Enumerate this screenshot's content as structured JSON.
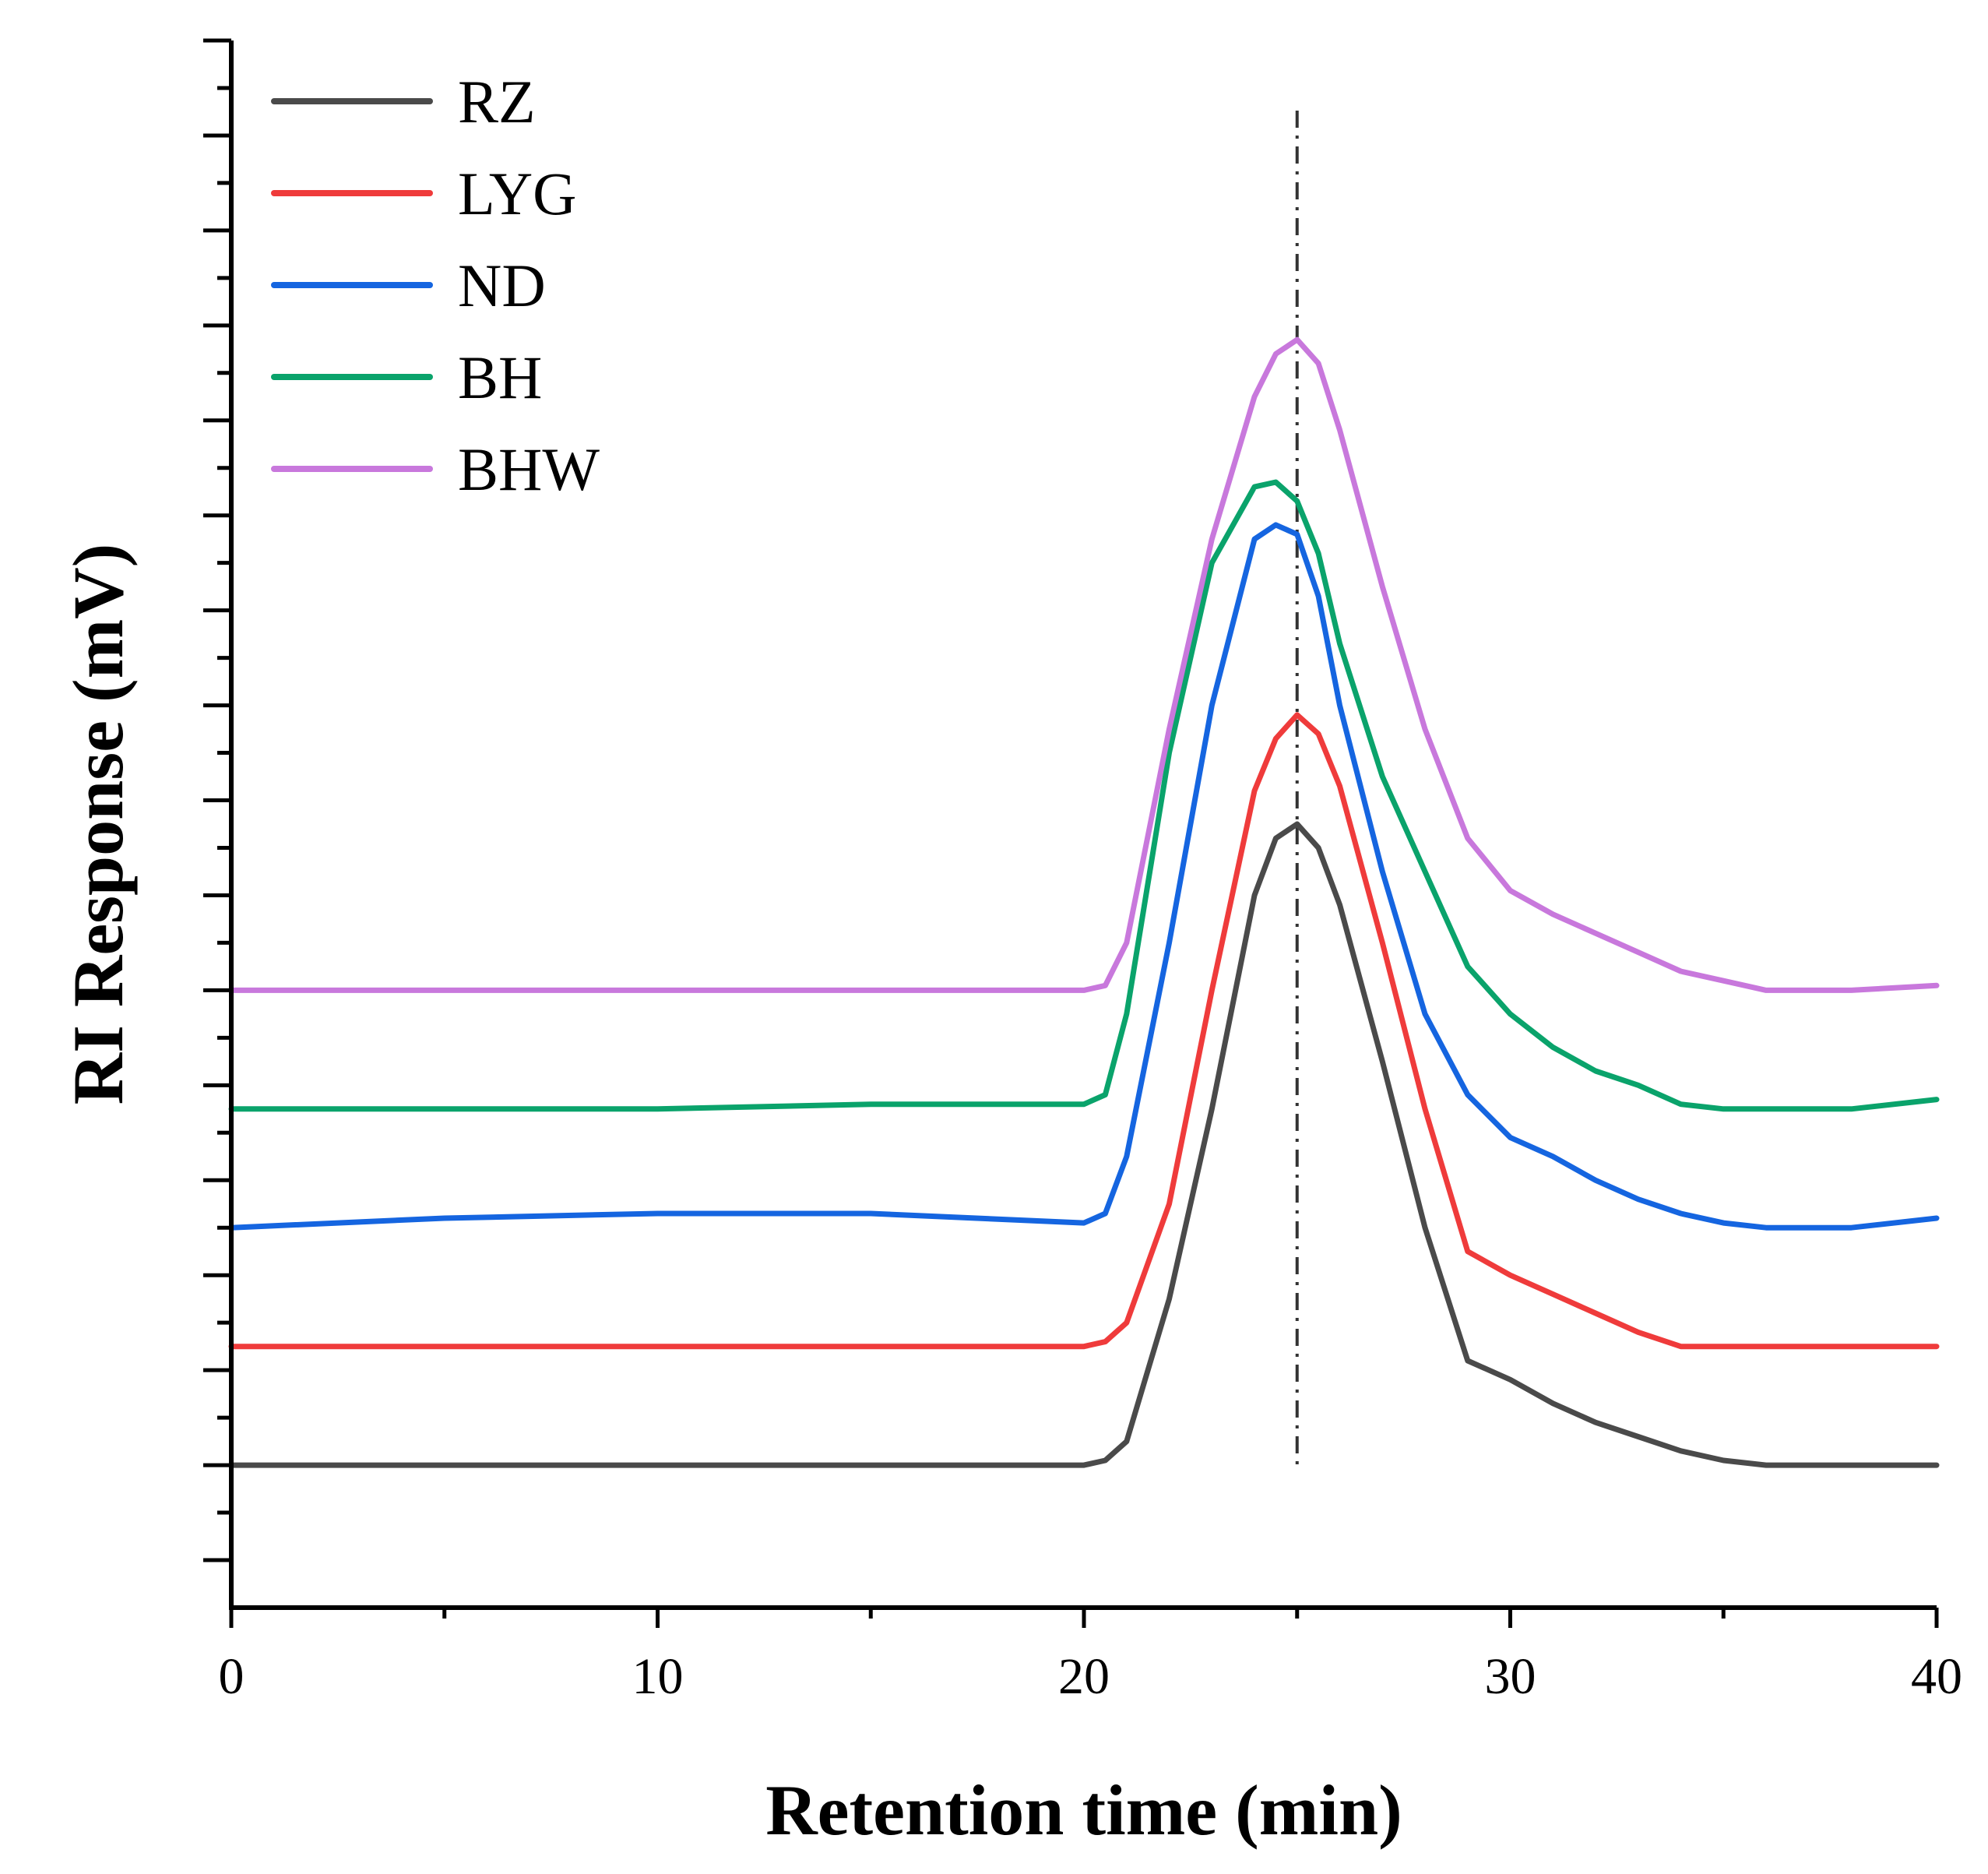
{
  "chart_data": {
    "type": "line",
    "title": "",
    "xlabel": "Retention time (min)",
    "ylabel": "RI Response (mV)",
    "xlim": [
      0,
      40
    ],
    "xticks": [
      0,
      10,
      20,
      30,
      40
    ],
    "xtick_labels": [
      "0",
      "10",
      "20",
      "30",
      "40"
    ],
    "y_ticks_labeled": false,
    "ylim": [
      -3.0,
      30.0
    ],
    "y_major_tick_step": 2,
    "grid": false,
    "legend_position": "top-left",
    "reference_line": {
      "x": 25,
      "style": "dash-dot",
      "color": "#333333"
    },
    "series": [
      {
        "name": "RZ",
        "color": "#4a4a4a",
        "x": [
          0,
          5,
          10,
          15,
          20,
          20.5,
          21,
          22,
          23,
          24,
          24.5,
          25,
          25.5,
          26,
          27,
          28,
          29,
          30,
          31,
          32,
          33,
          34,
          35,
          36,
          38,
          40
        ],
        "y": [
          0.0,
          0.0,
          0.0,
          0.0,
          0.0,
          0.1,
          0.5,
          3.5,
          7.5,
          12.0,
          13.2,
          13.5,
          13.0,
          11.8,
          8.5,
          5.0,
          2.2,
          1.8,
          1.3,
          0.9,
          0.6,
          0.3,
          0.1,
          0.0,
          0.0,
          0.0
        ]
      },
      {
        "name": "LYG",
        "color": "#ef3b3b",
        "x": [
          0,
          5,
          10,
          15,
          20,
          20.5,
          21,
          22,
          23,
          24,
          24.5,
          25,
          25.5,
          26,
          27,
          28,
          29,
          30,
          31,
          32,
          33,
          34,
          35,
          36,
          38,
          40
        ],
        "y": [
          2.5,
          2.5,
          2.5,
          2.5,
          2.5,
          2.6,
          3.0,
          5.5,
          10.0,
          14.2,
          15.3,
          15.8,
          15.4,
          14.3,
          11.0,
          7.5,
          4.5,
          4.0,
          3.6,
          3.2,
          2.8,
          2.5,
          2.5,
          2.5,
          2.5,
          2.5
        ]
      },
      {
        "name": "ND",
        "color": "#1565e0",
        "x": [
          0,
          5,
          10,
          15,
          20,
          20.5,
          21,
          22,
          23,
          24,
          24.5,
          25,
          25.5,
          26,
          27,
          28,
          29,
          30,
          31,
          32,
          33,
          34,
          35,
          36,
          38,
          40
        ],
        "y": [
          5.0,
          5.2,
          5.3,
          5.3,
          5.1,
          5.3,
          6.5,
          11.0,
          16.0,
          19.5,
          19.8,
          19.6,
          18.3,
          16.0,
          12.5,
          9.5,
          7.8,
          6.9,
          6.5,
          6.0,
          5.6,
          5.3,
          5.1,
          5.0,
          5.0,
          5.2
        ]
      },
      {
        "name": "BH",
        "color": "#0aa36b",
        "x": [
          0,
          5,
          10,
          15,
          20,
          20.5,
          21,
          22,
          23,
          24,
          24.5,
          25,
          25.5,
          26,
          27,
          28,
          29,
          30,
          31,
          32,
          33,
          34,
          35,
          36,
          38,
          40
        ],
        "y": [
          7.5,
          7.5,
          7.5,
          7.6,
          7.6,
          7.8,
          9.5,
          15.0,
          19.0,
          20.6,
          20.7,
          20.3,
          19.2,
          17.3,
          14.5,
          12.5,
          10.5,
          9.5,
          8.8,
          8.3,
          8.0,
          7.6,
          7.5,
          7.5,
          7.5,
          7.7
        ]
      },
      {
        "name": "BHW",
        "color": "#c878dc",
        "x": [
          0,
          5,
          10,
          15,
          20,
          20.5,
          21,
          22,
          23,
          24,
          24.5,
          25,
          25.5,
          26,
          27,
          28,
          29,
          30,
          31,
          32,
          33,
          34,
          35,
          36,
          38,
          40
        ],
        "y": [
          10.0,
          10.0,
          10.0,
          10.0,
          10.0,
          10.1,
          11.0,
          15.5,
          19.5,
          22.5,
          23.4,
          23.7,
          23.2,
          21.8,
          18.5,
          15.5,
          13.2,
          12.1,
          11.6,
          11.2,
          10.8,
          10.4,
          10.2,
          10.0,
          10.0,
          10.1
        ]
      }
    ]
  }
}
